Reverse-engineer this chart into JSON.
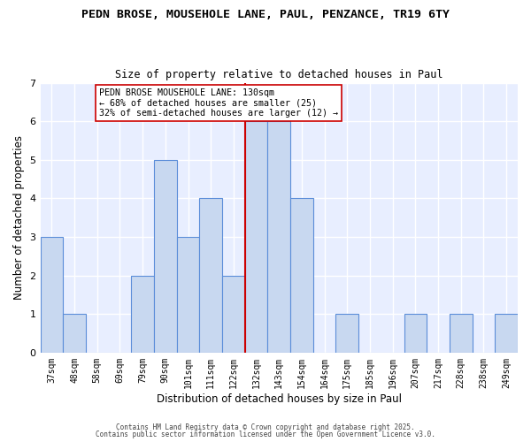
{
  "title_line1": "PEDN BROSE, MOUSEHOLE LANE, PAUL, PENZANCE, TR19 6TY",
  "title_line2": "Size of property relative to detached houses in Paul",
  "xlabel": "Distribution of detached houses by size in Paul",
  "ylabel": "Number of detached properties",
  "bin_labels": [
    "37sqm",
    "48sqm",
    "58sqm",
    "69sqm",
    "79sqm",
    "90sqm",
    "101sqm",
    "111sqm",
    "122sqm",
    "132sqm",
    "143sqm",
    "154sqm",
    "164sqm",
    "175sqm",
    "185sqm",
    "196sqm",
    "207sqm",
    "217sqm",
    "228sqm",
    "238sqm",
    "249sqm"
  ],
  "bar_heights": [
    3,
    1,
    0,
    0,
    2,
    5,
    3,
    4,
    2,
    6,
    6,
    4,
    0,
    1,
    0,
    0,
    1,
    0,
    1,
    0,
    1
  ],
  "bar_color": "#c8d8f0",
  "bar_edge_color": "#5b8dd9",
  "vline_color": "#cc0000",
  "ylim": [
    0,
    7
  ],
  "yticks": [
    0,
    1,
    2,
    3,
    4,
    5,
    6,
    7
  ],
  "annotation_title": "PEDN BROSE MOUSEHOLE LANE: 130sqm",
  "annotation_line2": "← 68% of detached houses are smaller (25)",
  "annotation_line3": "32% of semi-detached houses are larger (12) →",
  "annotation_box_facecolor": "#ffffff",
  "annotation_border_color": "#cc0000",
  "footer_line1": "Contains HM Land Registry data © Crown copyright and database right 2025.",
  "footer_line2": "Contains public sector information licensed under the Open Government Licence v3.0.",
  "background_color": "#ffffff",
  "plot_bg_color": "#e8eeff",
  "grid_color": "#ffffff"
}
